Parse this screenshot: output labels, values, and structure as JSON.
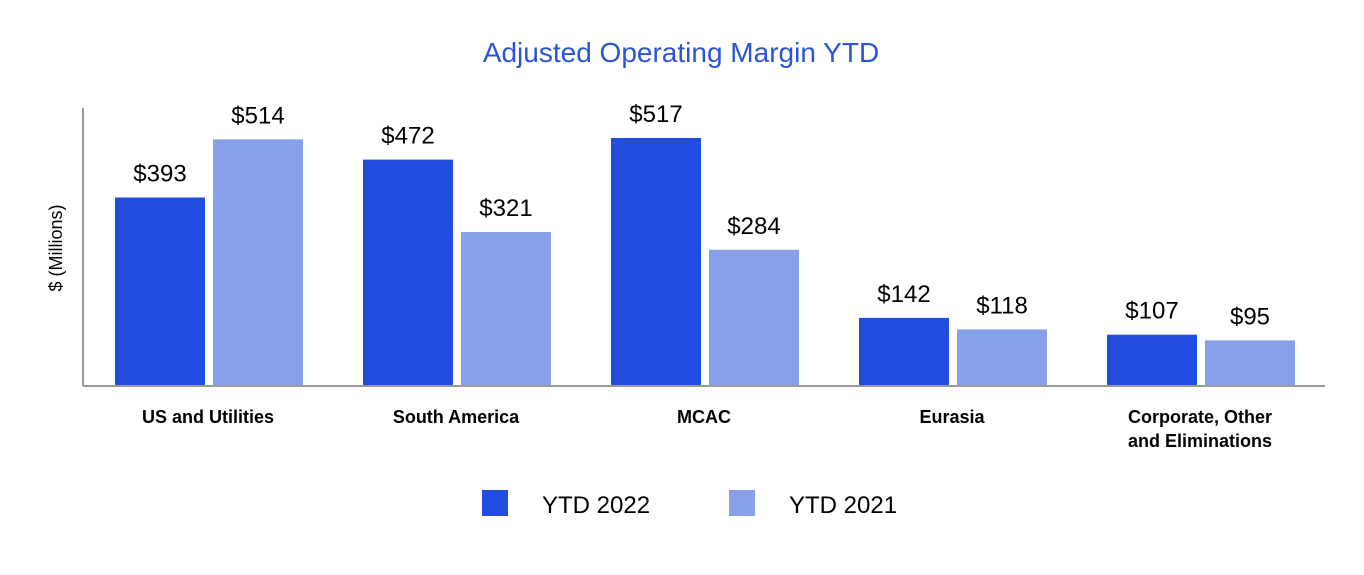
{
  "colors": {
    "series_2022": "#224ee0",
    "series_2021": "#86a0ea",
    "title": "#2a55d6",
    "axis": "#9a9a9a",
    "text": "#000000"
  },
  "chart_data": {
    "type": "bar",
    "title": "Adjusted Operating Margin YTD",
    "xlabel": "",
    "ylabel": "$ (Millions)",
    "ylim": [
      0,
      550
    ],
    "grid": false,
    "legend_position": "bottom-center",
    "categories": [
      "US and Utilities",
      "South America",
      "MCAC",
      "Eurasia",
      "Corporate, Other and Eliminations"
    ],
    "category_lines": [
      [
        "US and Utilities"
      ],
      [
        "South America"
      ],
      [
        "MCAC"
      ],
      [
        "Eurasia"
      ],
      [
        "Corporate, Other",
        "and Eliminations"
      ]
    ],
    "series": [
      {
        "name": "YTD 2022",
        "color": "#224ee0",
        "values": [
          393,
          472,
          517,
          142,
          107
        ],
        "labels": [
          "$393",
          "$472",
          "$517",
          "$142",
          "$107"
        ]
      },
      {
        "name": "YTD 2021",
        "color": "#86a0ea",
        "values": [
          514,
          321,
          284,
          118,
          95
        ],
        "labels": [
          "$514",
          "$321",
          "$284",
          "$118",
          "$95"
        ]
      }
    ]
  }
}
